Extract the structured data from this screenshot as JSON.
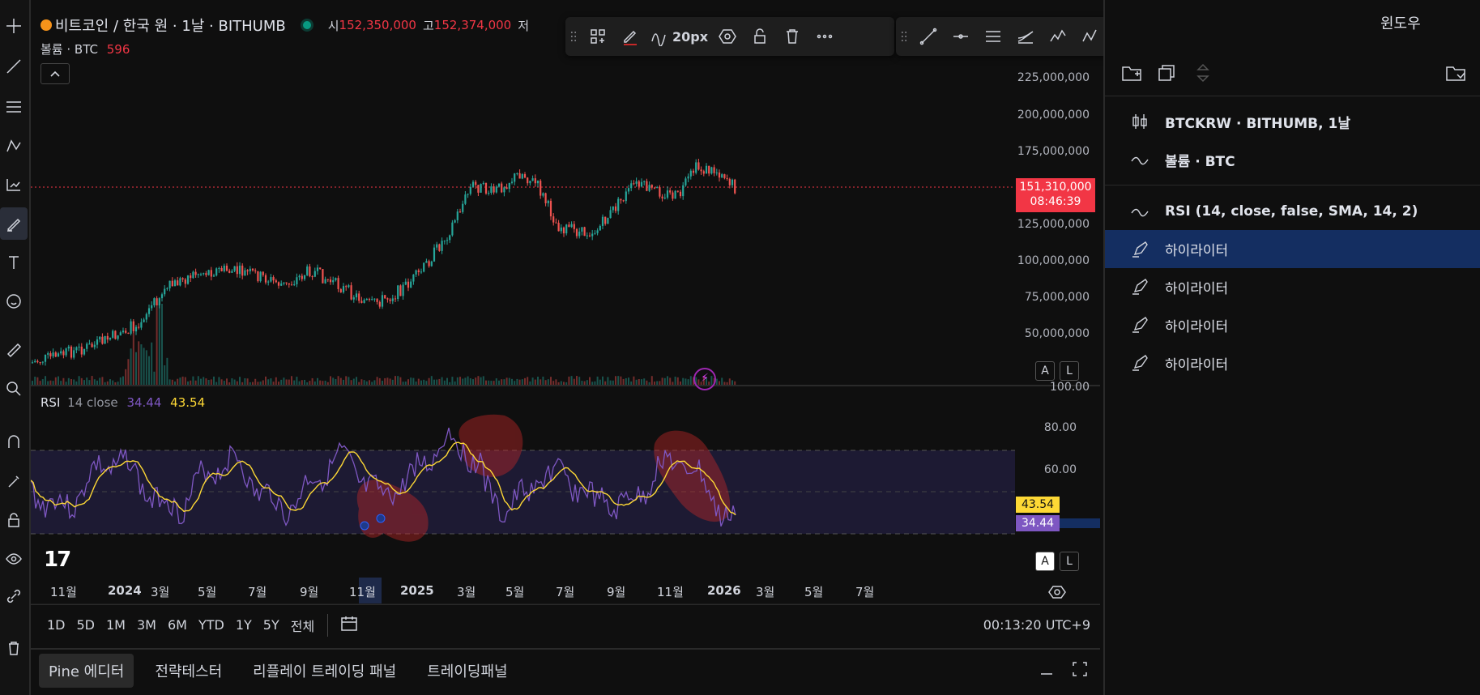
{
  "header": {
    "symbol_title": "비트코인 / 한국 원 · 1날 · BITHUMB",
    "open_label": "시",
    "open_value": "152,350,000",
    "high_label": "고",
    "high_value": "152,374,000",
    "low_label_partial": "저",
    "volume_label": "볼륨 · BTC",
    "volume_value": "596"
  },
  "drawing_toolbar": {
    "width_label": "20px"
  },
  "window_label": "윈도우",
  "price_axis": {
    "ticks": [
      "225,000,000",
      "200,000,000",
      "175,000,000",
      "125,000,000",
      "100,000,000",
      "75,000,000",
      "50,000,000"
    ],
    "last_price": "151,310,000",
    "countdown": "08:46:39"
  },
  "rsi_pane": {
    "title": "RSI",
    "params": "14 close",
    "rsi_value": "34.44",
    "ma_value": "43.54",
    "ticks": [
      "100.00",
      "80.00",
      "60.00"
    ],
    "rsi_tag": "34.44",
    "ma_tag": "43.54"
  },
  "scale_buttons": {
    "auto": "A",
    "log": "L"
  },
  "time_axis": {
    "labels": [
      "11월",
      "2024",
      "3월",
      "5월",
      "7월",
      "9월",
      "11월",
      "2025",
      "3월",
      "5월",
      "7월",
      "9월",
      "11월",
      "2026",
      "3월",
      "5월",
      "7월"
    ]
  },
  "timeframes": [
    "1D",
    "5D",
    "1M",
    "3M",
    "6M",
    "YTD",
    "1Y",
    "5Y",
    "전체"
  ],
  "clock": "00:13:20 UTC+9",
  "bottom_tabs": [
    "Pine 에디터",
    "전략테스터",
    "리플레이 트레이딩 패널",
    "트레이딩패널"
  ],
  "object_tree": {
    "items": [
      {
        "label": "BTCKRW · BITHUMB, 1날",
        "icon": "candles-icon"
      },
      {
        "label": "볼륨 · BTC",
        "icon": "wave-icon"
      },
      {
        "label": "RSI (14, close, false, SMA, 14, 2)",
        "icon": "wave-icon"
      },
      {
        "label": "하이라이터",
        "icon": "highlighter-icon"
      },
      {
        "label": "하이라이터",
        "icon": "highlighter-icon"
      },
      {
        "label": "하이라이터",
        "icon": "highlighter-icon"
      },
      {
        "label": "하이라이터",
        "icon": "highlighter-icon"
      }
    ]
  },
  "colors": {
    "up": "#26a69a",
    "down": "#ef5350",
    "rsi_line": "#7e57c2",
    "rsi_ma": "#fdd835",
    "price_tag": "#f23645",
    "selection": "#142e61",
    "highlighter": "#c62828"
  }
}
